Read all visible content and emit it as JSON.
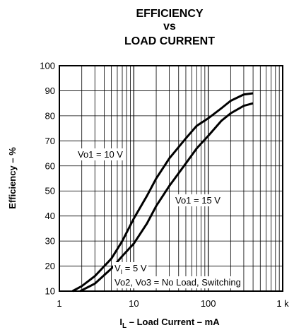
{
  "chart_data": {
    "type": "line",
    "title": [
      "EFFICIENCY",
      "vs",
      "LOAD CURRENT"
    ],
    "y_label": "Efficiency – %",
    "x_label": [
      "I",
      "L",
      " – Load Current – mA"
    ],
    "xscale": "log",
    "xlim": [
      1,
      1000
    ],
    "xticks": [
      1,
      10,
      100,
      {
        "value": 1000,
        "label": "1 k"
      }
    ],
    "x_minor_ticks": [
      2,
      3,
      4,
      5,
      6,
      7,
      8,
      9,
      20,
      30,
      40,
      50,
      60,
      70,
      80,
      90,
      200,
      300,
      400,
      500,
      600,
      700,
      800,
      900
    ],
    "ylim": [
      10,
      100
    ],
    "yticks": [
      10,
      20,
      30,
      40,
      50,
      60,
      70,
      80,
      90,
      100
    ],
    "grid": true,
    "series": [
      {
        "name": "Vo1 = 10 V",
        "color": "#000000",
        "x": [
          1.5,
          2,
          3,
          5,
          7,
          10,
          15,
          20,
          30,
          50,
          70,
          100,
          150,
          200,
          300,
          400
        ],
        "values": [
          10,
          12,
          16,
          23,
          30,
          39,
          48,
          55,
          63,
          71,
          76,
          79,
          83,
          86,
          88.5,
          89
        ]
      },
      {
        "name": "Vo1 = 15 V",
        "color": "#000000",
        "x": [
          1.9,
          3,
          5,
          7,
          10,
          15,
          20,
          30,
          50,
          70,
          100,
          150,
          200,
          300,
          400
        ],
        "values": [
          10,
          13,
          19,
          24,
          29,
          37,
          44,
          52,
          61,
          67,
          72,
          78,
          81,
          84,
          85
        ]
      }
    ],
    "annotations": [
      [
        "V",
        "I",
        " = 5 V"
      ],
      [
        "Vo2, Vo3 = No Load, Switching"
      ]
    ]
  }
}
